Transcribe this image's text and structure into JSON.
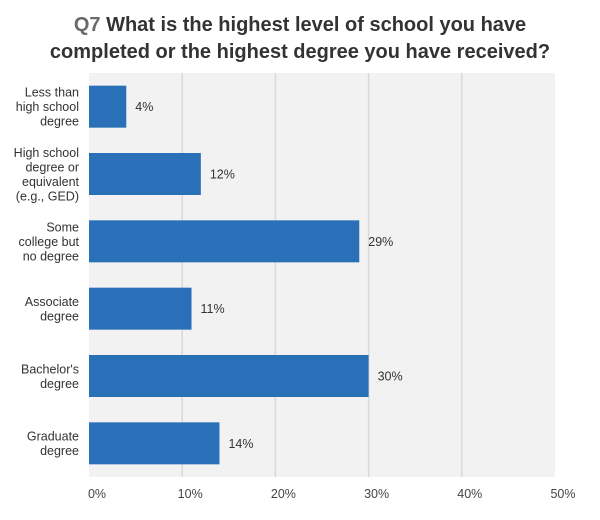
{
  "chart_data": {
    "type": "bar",
    "orientation": "horizontal",
    "title_prefix": "Q7",
    "title_line1": "What is the highest level of school you have",
    "title_line2": "completed or the highest degree you have received?",
    "categories": [
      [
        "Less than",
        "high school",
        "degree"
      ],
      [
        "High school",
        "degree or",
        "equivalent",
        "(e.g., GED)"
      ],
      [
        "Some",
        "college but",
        "no degree"
      ],
      [
        "Associate",
        "degree"
      ],
      [
        "Bachelor's",
        "degree"
      ],
      [
        "Graduate",
        "degree"
      ]
    ],
    "values": [
      4,
      12,
      29,
      11,
      30,
      14
    ],
    "value_labels": [
      "4%",
      "12%",
      "29%",
      "11%",
      "30%",
      "14%"
    ],
    "xlim": [
      0,
      50
    ],
    "xticks": [
      0,
      10,
      20,
      30,
      40,
      50
    ],
    "xtick_labels": [
      "0%",
      "10%",
      "20%",
      "30%",
      "40%",
      "50%"
    ],
    "grid": true,
    "bar_color": "#2a70b8",
    "plot_bg": "#f2f2f2",
    "grid_color": "#d9d9d9"
  }
}
